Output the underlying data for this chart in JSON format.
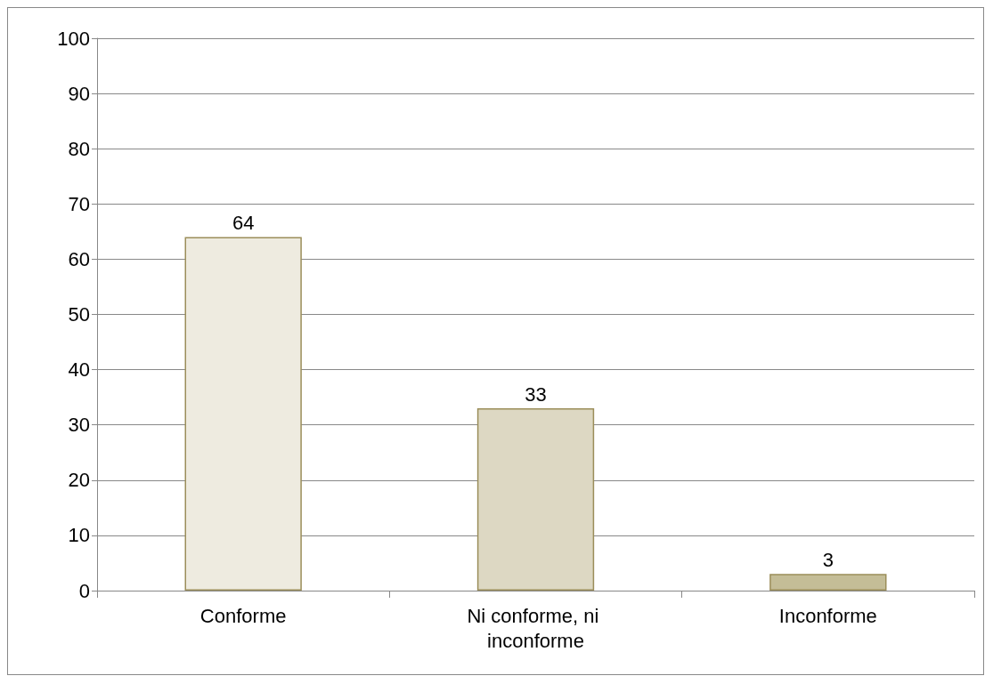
{
  "chart_data": {
    "type": "bar",
    "categories": [
      "Conforme",
      "Ni conforme, ni inconforme",
      "Inconforme"
    ],
    "values": [
      64,
      33,
      3
    ],
    "colors": [
      "#eeebe0",
      "#ddd8c3",
      "#c4bd97"
    ],
    "ylim": [
      0,
      100
    ],
    "yticks": [
      0,
      10,
      20,
      30,
      40,
      50,
      60,
      70,
      80,
      90,
      100
    ],
    "grid": "y",
    "data_labels": true
  }
}
